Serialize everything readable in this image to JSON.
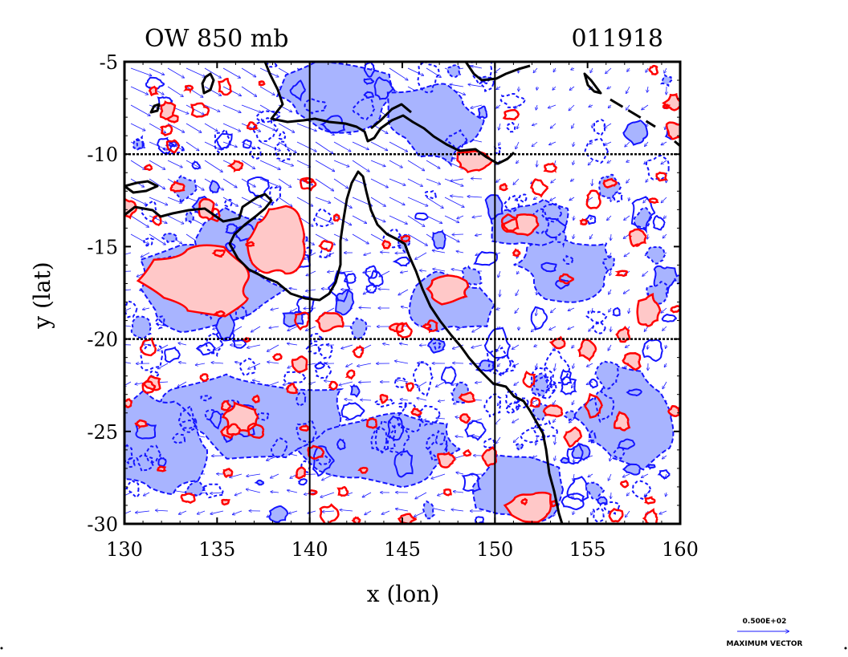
{
  "figure": {
    "title_left": "OW 850 mb",
    "title_right": "011918",
    "xlabel": "x (lon)",
    "ylabel": "y (lat)",
    "x_ticks": [
      "130",
      "135",
      "140",
      "145",
      "150",
      "155",
      "160"
    ],
    "y_ticks": [
      "-5",
      "-10",
      "-15",
      "-20",
      "-25",
      "-30"
    ],
    "x_range": [
      130,
      160
    ],
    "y_range": [
      -30,
      -5
    ],
    "grid_lines_lon": [
      140,
      150
    ],
    "grid_lines_lat": [
      -10,
      -20
    ],
    "vector_legend": {
      "value": "0.500E+02",
      "label": "MAXIMUM VECTOR"
    }
  },
  "colors": {
    "positive_contour": "#ff0000",
    "positive_fill": "#ffc8c8",
    "negative_contour": "#1414ff",
    "negative_fill": "#a8b4ff",
    "vectors": "#1a1aff",
    "coastline": "#000000",
    "grid": "#000000"
  }
}
